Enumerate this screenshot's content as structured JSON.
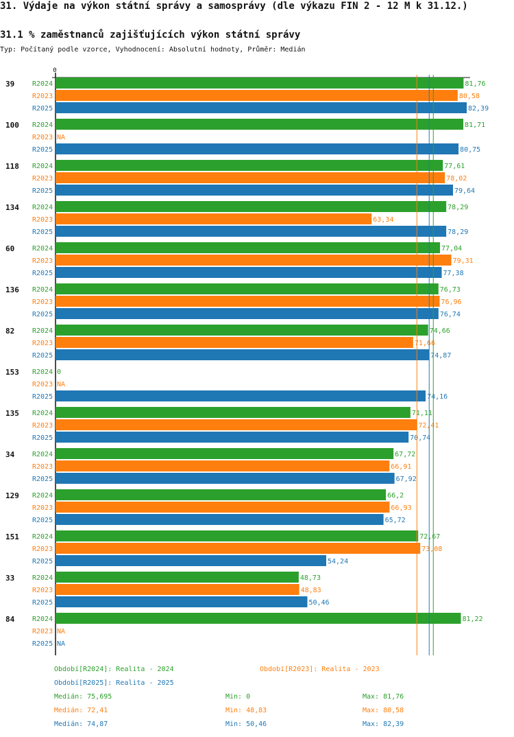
{
  "title": "31. Výdaje na výkon státní správy a samosprávy (dle výkazu FIN 2 - 12 M k 31.12.)",
  "subtitle": "31.1 % zaměstnanců zajišťujících výkon státní správy",
  "type_line": "Typ: Počítaný podle vzorce, Vyhodnocení: Absolutní hodnoty, Průměr: Medián",
  "colors": {
    "R2024": "#2ca02c",
    "R2023": "#ff7f0e",
    "R2025": "#1f77b4"
  },
  "chart_data": {
    "type": "bar",
    "orientation": "horizontal",
    "axis_zero_label": "0",
    "xlim": [
      0,
      82.39
    ],
    "series_order": [
      "R2024",
      "R2023",
      "R2025"
    ],
    "series_names": {
      "R2024": "Realita - 2024",
      "R2023": "Realita - 2023",
      "R2025": "Realita - 2025"
    },
    "categories": [
      {
        "id": "39",
        "values": {
          "R2024": 81.76,
          "R2023": 80.58,
          "R2025": 82.39
        },
        "labels": {
          "R2024": "81,76",
          "R2023": "80,58",
          "R2025": "82,39"
        }
      },
      {
        "id": "100",
        "values": {
          "R2024": 81.71,
          "R2023": null,
          "R2025": 80.75
        },
        "labels": {
          "R2024": "81,71",
          "R2023": "NA",
          "R2025": "80,75"
        }
      },
      {
        "id": "118",
        "values": {
          "R2024": 77.61,
          "R2023": 78.02,
          "R2025": 79.64
        },
        "labels": {
          "R2024": "77,61",
          "R2023": "78,02",
          "R2025": "79,64"
        }
      },
      {
        "id": "134",
        "values": {
          "R2024": 78.29,
          "R2023": 63.34,
          "R2025": 78.29
        },
        "labels": {
          "R2024": "78,29",
          "R2023": "63,34",
          "R2025": "78,29"
        }
      },
      {
        "id": "60",
        "values": {
          "R2024": 77.04,
          "R2023": 79.31,
          "R2025": 77.38
        },
        "labels": {
          "R2024": "77,04",
          "R2023": "79,31",
          "R2025": "77,38"
        }
      },
      {
        "id": "136",
        "values": {
          "R2024": 76.73,
          "R2023": 76.96,
          "R2025": 76.74
        },
        "labels": {
          "R2024": "76,73",
          "R2023": "76,96",
          "R2025": "76,74"
        }
      },
      {
        "id": "82",
        "values": {
          "R2024": 74.66,
          "R2023": 71.66,
          "R2025": 74.87
        },
        "labels": {
          "R2024": "74,66",
          "R2023": "71,66",
          "R2025": "74,87"
        }
      },
      {
        "id": "153",
        "values": {
          "R2024": 0,
          "R2023": null,
          "R2025": 74.16
        },
        "labels": {
          "R2024": "0",
          "R2023": "NA",
          "R2025": "74,16"
        }
      },
      {
        "id": "135",
        "values": {
          "R2024": 71.11,
          "R2023": 72.41,
          "R2025": 70.74
        },
        "labels": {
          "R2024": "71,11",
          "R2023": "72,41",
          "R2025": "70,74"
        }
      },
      {
        "id": "34",
        "values": {
          "R2024": 67.72,
          "R2023": 66.91,
          "R2025": 67.92
        },
        "labels": {
          "R2024": "67,72",
          "R2023": "66,91",
          "R2025": "67,92"
        }
      },
      {
        "id": "129",
        "values": {
          "R2024": 66.2,
          "R2023": 66.93,
          "R2025": 65.72
        },
        "labels": {
          "R2024": "66,2",
          "R2023": "66,93",
          "R2025": "65,72"
        }
      },
      {
        "id": "151",
        "values": {
          "R2024": 72.67,
          "R2023": 73.08,
          "R2025": 54.24
        },
        "labels": {
          "R2024": "72,67",
          "R2023": "73,08",
          "R2025": "54,24"
        }
      },
      {
        "id": "33",
        "values": {
          "R2024": 48.73,
          "R2023": 48.83,
          "R2025": 50.46
        },
        "labels": {
          "R2024": "48,73",
          "R2023": "48,83",
          "R2025": "50,46"
        }
      },
      {
        "id": "84",
        "values": {
          "R2024": 81.22,
          "R2023": null,
          "R2025": null
        },
        "labels": {
          "R2024": "81,22",
          "R2023": "NA",
          "R2025": "NA"
        }
      }
    ],
    "median_lines": {
      "R2024": 75.695,
      "R2023": 72.41,
      "R2025": 74.87
    }
  },
  "legend": {
    "r2024": "Období[R2024]: Realita - 2024",
    "r2023": "Období[R2023]: Realita - 2023",
    "r2025": "Období[R2025]: Realita - 2025"
  },
  "stats": {
    "r2024": {
      "median": "Medián: 75,695",
      "min": "Min: 0",
      "max": "Max: 81,76"
    },
    "r2023": {
      "median": "Medián: 72,41",
      "min": "Min: 48,83",
      "max": "Max: 80,58"
    },
    "r2025": {
      "median": "Medián: 74,87",
      "min": "Min: 50,46",
      "max": "Max: 82,39"
    }
  }
}
